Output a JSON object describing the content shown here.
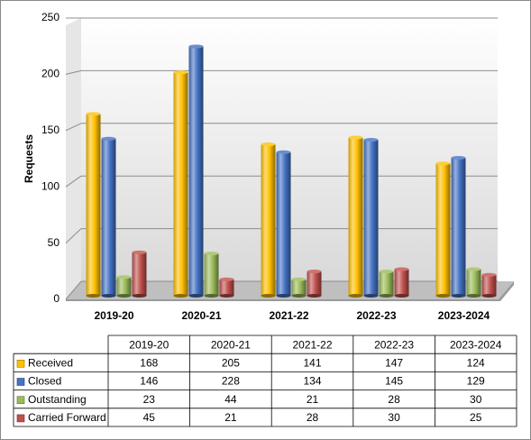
{
  "chart_data": {
    "type": "bar",
    "y_label": "Requests",
    "categories": [
      "2019-20",
      "2020-21",
      "2021-22",
      "2022-23",
      "2023-2024"
    ],
    "series": [
      {
        "name": "Received",
        "color": "#ffc000",
        "values": [
          168,
          205,
          141,
          147,
          124
        ]
      },
      {
        "name": "Closed",
        "color": "#4472c4",
        "values": [
          146,
          228,
          134,
          145,
          129
        ]
      },
      {
        "name": "Outstanding",
        "color": "#9bbb59",
        "values": [
          23,
          44,
          21,
          28,
          30
        ]
      },
      {
        "name": "Carried Forward",
        "color": "#c0504d",
        "values": [
          45,
          21,
          28,
          30,
          25
        ]
      }
    ],
    "ylim": [
      0,
      250
    ],
    "yticks": [
      0,
      50,
      100,
      150,
      200,
      250
    ],
    "grid": true,
    "data_table": true
  }
}
